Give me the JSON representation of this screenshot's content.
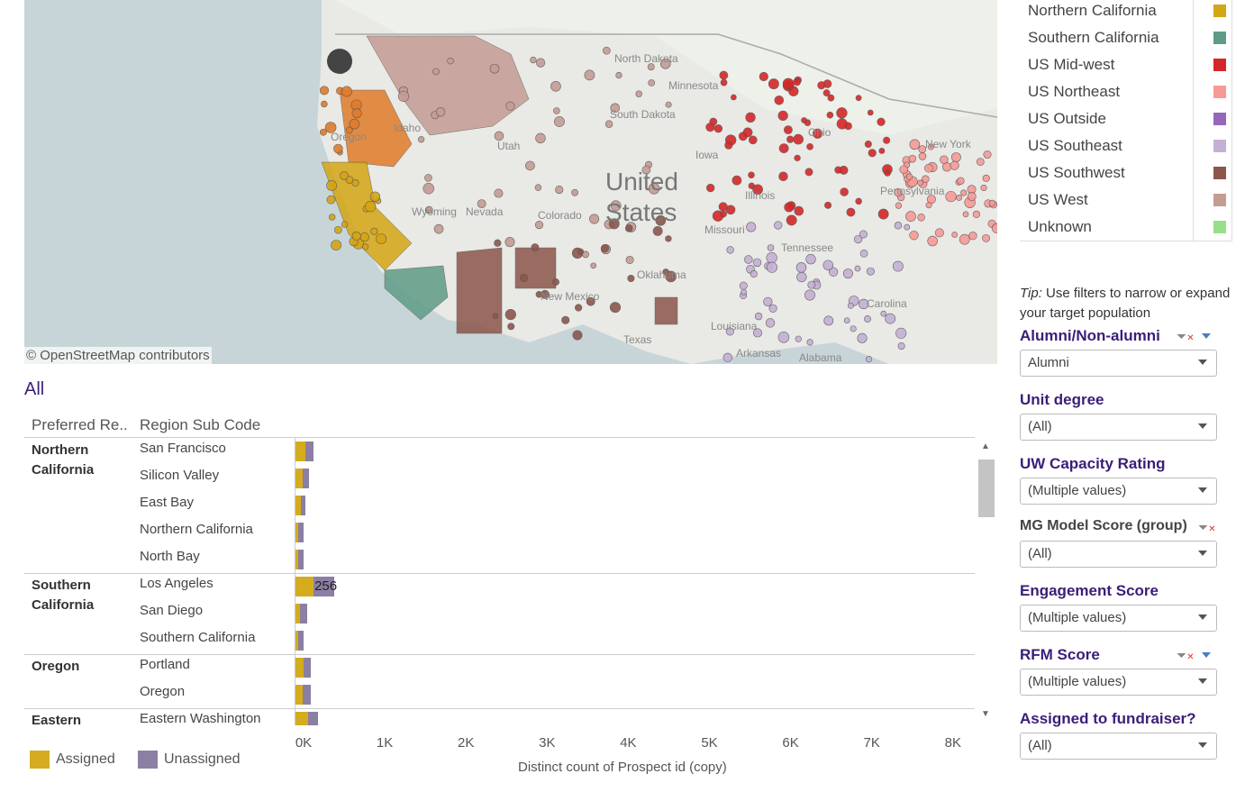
{
  "map": {
    "attribution": "© OpenStreetMap contributors",
    "labels": [
      {
        "t": "United",
        "big": true
      },
      {
        "t": "States",
        "big": true
      },
      {
        "t": "North Dakota"
      },
      {
        "t": "South Dakota"
      },
      {
        "t": "Minnesota"
      },
      {
        "t": "Iowa"
      },
      {
        "t": "Idaho"
      },
      {
        "t": "Wyoming"
      },
      {
        "t": "Nevada"
      },
      {
        "t": "Utah"
      },
      {
        "t": "Colorado"
      },
      {
        "t": "Oklahoma"
      },
      {
        "t": "New Mexico"
      },
      {
        "t": "Texas"
      },
      {
        "t": "Missouri"
      },
      {
        "t": "Arkansas"
      },
      {
        "t": "Tennessee"
      },
      {
        "t": "Alabama"
      },
      {
        "t": "Louisiana"
      },
      {
        "t": "Pennsylvania"
      },
      {
        "t": "New York"
      },
      {
        "t": "Oregon"
      },
      {
        "t": "Illinois"
      },
      {
        "t": "Ohio"
      },
      {
        "t": "Carolina"
      }
    ]
  },
  "legend": [
    {
      "label": "Northern California",
      "color": "#d4a514"
    },
    {
      "label": "Southern California",
      "color": "#5f9c87"
    },
    {
      "label": "US Mid-west",
      "color": "#d62728"
    },
    {
      "label": "US Northeast",
      "color": "#f79a96"
    },
    {
      "label": "US Outside",
      "color": "#9467bd"
    },
    {
      "label": "US Southeast",
      "color": "#c5b0d5"
    },
    {
      "label": "US Southwest",
      "color": "#8c564b"
    },
    {
      "label": "US West",
      "color": "#c49c94"
    },
    {
      "label": "Unknown",
      "color": "#98df8a"
    }
  ],
  "sheet_title": "All",
  "table": {
    "col1": "Preferred Re..",
    "col2": "Region Sub Code"
  },
  "chart_data": {
    "type": "bar",
    "stacked": true,
    "orientation": "horizontal",
    "xlabel": "Distinct count of Prospect id (copy)",
    "xlim": [
      0,
      8000
    ],
    "ticks": [
      "0K",
      "1K",
      "2K",
      "3K",
      "4K",
      "5K",
      "6K",
      "7K",
      "8K"
    ],
    "series": [
      {
        "name": "Assigned",
        "color": "#d4ac1e"
      },
      {
        "name": "Unassigned",
        "color": "#8b7fa3"
      }
    ],
    "groups": [
      {
        "name": "Northern California",
        "rows": [
          {
            "sub": "San Francisco",
            "values": [
              120,
              100
            ]
          },
          {
            "sub": "Silicon Valley",
            "values": [
              90,
              75
            ]
          },
          {
            "sub": "East Bay",
            "values": [
              65,
              60
            ]
          },
          {
            "sub": "Northern California",
            "values": [
              30,
              70
            ]
          },
          {
            "sub": "North Bay",
            "values": [
              30,
              70
            ]
          }
        ]
      },
      {
        "name": "Southern California",
        "rows": [
          {
            "sub": "Los Angeles",
            "values": [
              220,
              256
            ],
            "label": "256"
          },
          {
            "sub": "San Diego",
            "values": [
              55,
              90
            ]
          },
          {
            "sub": "Southern California",
            "values": [
              35,
              65
            ]
          }
        ]
      },
      {
        "name": "Oregon",
        "rows": [
          {
            "sub": "Portland",
            "values": [
              100,
              90
            ]
          },
          {
            "sub": "Oregon",
            "values": [
              85,
              100
            ]
          }
        ]
      },
      {
        "name": "Eastern",
        "rows": [
          {
            "sub": "Eastern Washington",
            "values": [
              155,
              120
            ]
          }
        ]
      }
    ]
  },
  "filters": {
    "tip_em": "Tip:",
    "tip": " Use filters to narrow or expand your target population",
    "items": [
      {
        "title": "Alumni/Non-alumni",
        "value": "Alumni"
      },
      {
        "title": "Unit degree",
        "value": "(All)"
      },
      {
        "title": "UW Capacity Rating",
        "value": "(Multiple values)"
      },
      {
        "title": "MG Model Score (group)",
        "value": "(All)"
      },
      {
        "title": "Engagement Score",
        "value": "(Multiple values)"
      },
      {
        "title": "RFM Score",
        "value": "(Multiple values)"
      },
      {
        "title": "Assigned to fundraiser?",
        "value": "(All)"
      }
    ]
  }
}
